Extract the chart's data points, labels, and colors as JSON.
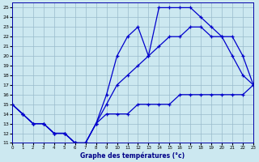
{
  "xlabel": "Graphe des températures (°c)",
  "background_color": "#cce8f0",
  "grid_color": "#99bbcc",
  "line_color": "#0000cc",
  "xlim": [
    0,
    23
  ],
  "ylim": [
    11,
    25.5
  ],
  "xticks": [
    0,
    1,
    2,
    3,
    4,
    5,
    6,
    7,
    8,
    9,
    10,
    11,
    12,
    13,
    14,
    15,
    16,
    17,
    18,
    19,
    20,
    21,
    22,
    23
  ],
  "yticks": [
    11,
    12,
    13,
    14,
    15,
    16,
    17,
    18,
    19,
    20,
    21,
    22,
    23,
    24,
    25
  ],
  "curve_top_x": [
    0,
    1,
    2,
    3,
    4,
    5,
    6,
    7,
    8,
    9,
    10,
    11,
    12,
    13,
    14,
    15,
    16,
    17,
    18,
    19,
    20,
    21,
    22,
    23
  ],
  "curve_top_y": [
    15,
    14,
    13,
    13,
    12,
    12,
    11,
    11,
    13,
    16,
    20,
    22,
    23,
    20,
    25,
    25,
    25,
    25,
    24,
    23,
    22,
    20,
    18,
    17
  ],
  "curve_mid_x": [
    0,
    1,
    2,
    3,
    4,
    5,
    6,
    7,
    8,
    9,
    10,
    11,
    12,
    13,
    14,
    15,
    16,
    17,
    18,
    19,
    20,
    21,
    22,
    23
  ],
  "curve_mid_y": [
    15,
    14,
    13,
    13,
    12,
    12,
    11,
    11,
    13,
    15,
    17,
    18,
    19,
    20,
    21,
    22,
    22,
    23,
    23,
    22,
    22,
    22,
    20,
    17
  ],
  "curve_bot_x": [
    0,
    1,
    2,
    3,
    4,
    5,
    6,
    7,
    8,
    9,
    10,
    11,
    12,
    13,
    14,
    15,
    16,
    17,
    18,
    19,
    20,
    21,
    22,
    23
  ],
  "curve_bot_y": [
    15,
    14,
    13,
    13,
    12,
    12,
    11,
    11,
    13,
    14,
    14,
    14,
    15,
    15,
    15,
    15,
    16,
    16,
    16,
    16,
    16,
    16,
    16,
    17
  ]
}
